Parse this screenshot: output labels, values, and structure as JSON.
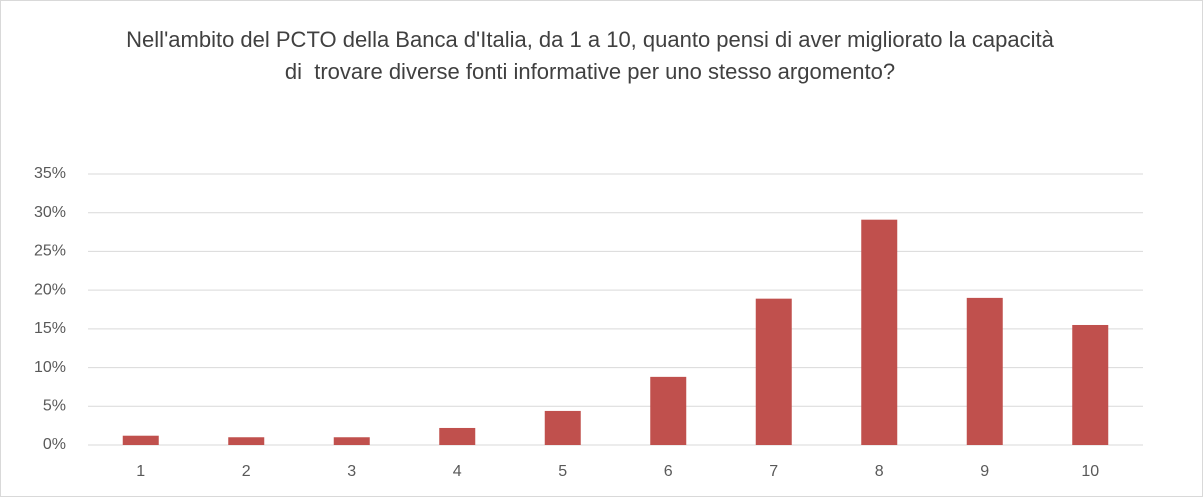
{
  "chart_data": {
    "type": "bar",
    "title": "Nell'ambito del PCTO della Banca d'Italia, da 1 a 10, quanto pensi di aver migliorato la capacità di  trovare diverse fonti informative per uno stesso argomento?",
    "categories": [
      "1",
      "2",
      "3",
      "4",
      "5",
      "6",
      "7",
      "8",
      "9",
      "10"
    ],
    "values": [
      1.2,
      1.0,
      1.0,
      2.2,
      4.4,
      8.8,
      18.9,
      29.1,
      19.0,
      15.5
    ],
    "color": "#c0504d",
    "ylim": [
      0,
      35
    ],
    "yticks": [
      {
        "value": 0,
        "label": "0%"
      },
      {
        "value": 5,
        "label": "5%"
      },
      {
        "value": 10,
        "label": "10%"
      },
      {
        "value": 15,
        "label": "15%"
      },
      {
        "value": 20,
        "label": "20%"
      },
      {
        "value": 25,
        "label": "25%"
      },
      {
        "value": 30,
        "label": "30%"
      },
      {
        "value": 35,
        "label": "35%"
      }
    ],
    "grid": true
  }
}
